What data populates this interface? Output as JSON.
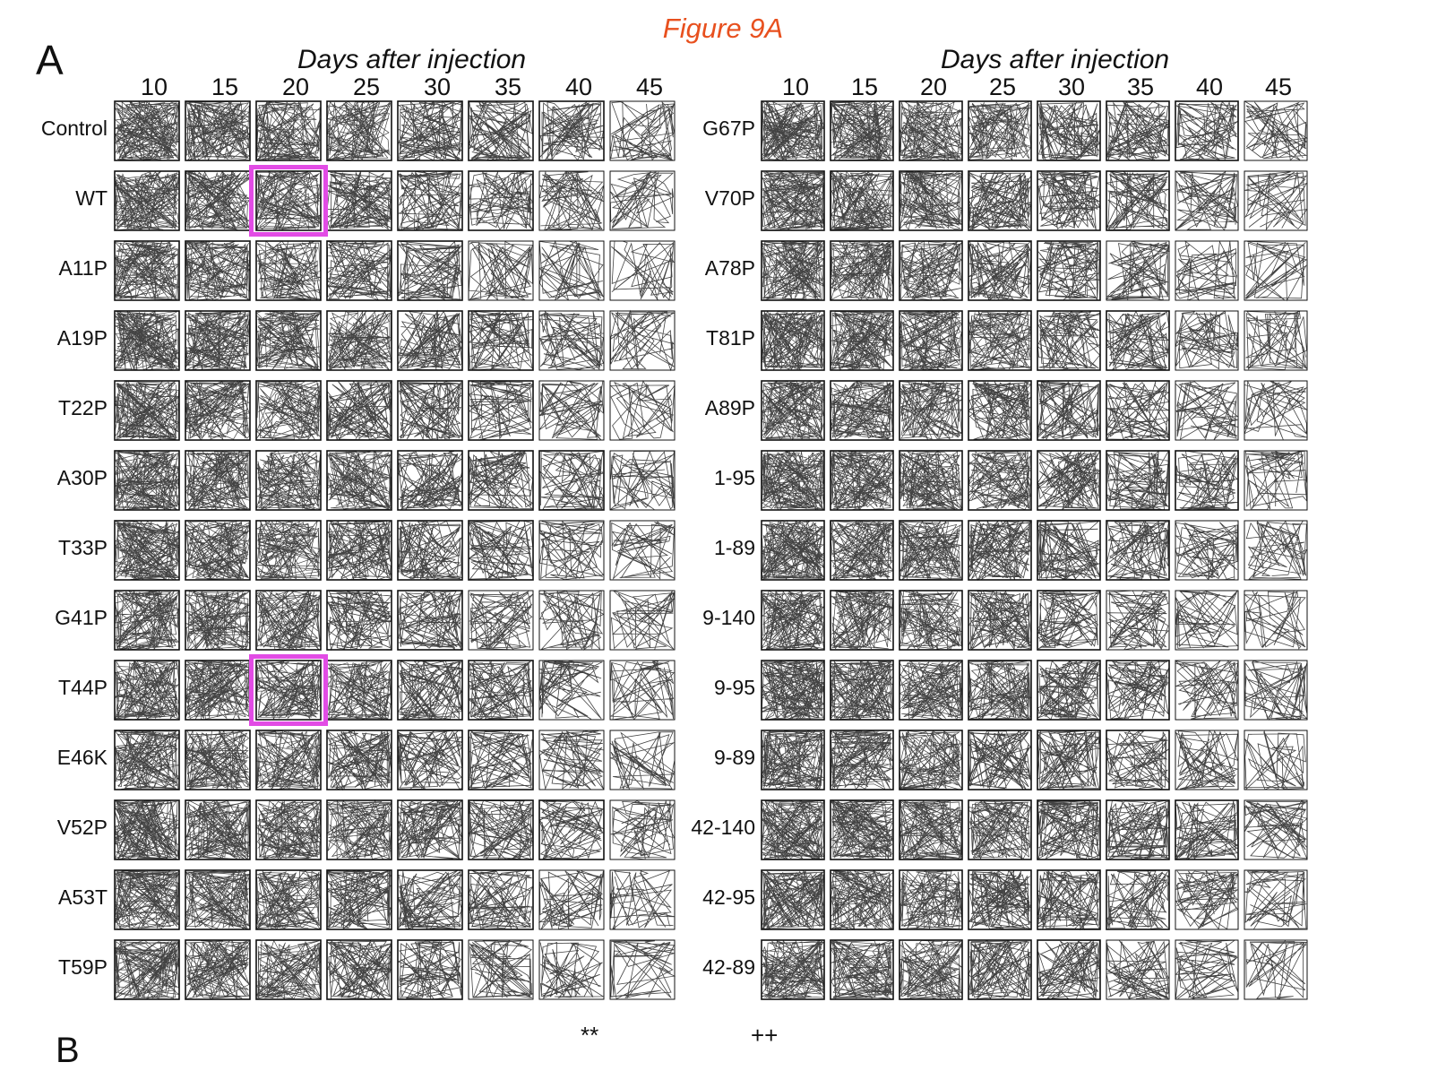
{
  "figure": {
    "title": "Figure 9A",
    "title_color": "#e8501e",
    "panel_letter": "A",
    "panel_letter_next": "B",
    "stars": [
      "**",
      "++"
    ],
    "highlight_color": "#e24ce5"
  },
  "left_panel": {
    "axis_title": "Days after injection",
    "days": [
      "10",
      "15",
      "20",
      "25",
      "30",
      "35",
      "40",
      "45"
    ],
    "rows": [
      "Control",
      "WT",
      "A11P",
      "A19P",
      "T22P",
      "A30P",
      "T33P",
      "G41P",
      "T44P",
      "E46K",
      "V52P",
      "A53T",
      "T59P"
    ]
  },
  "right_panel": {
    "axis_title": "Days after injection",
    "days": [
      "10",
      "15",
      "20",
      "25",
      "30",
      "35",
      "40",
      "45"
    ],
    "rows": [
      "G67P",
      "V70P",
      "A78P",
      "T81P",
      "A89P",
      "1-95",
      "1-89",
      "9-140",
      "9-95",
      "9-89",
      "42-140",
      "42-95",
      "42-89"
    ]
  },
  "highlights": [
    {
      "panel": "left",
      "row": "WT",
      "day": "20"
    },
    {
      "panel": "left",
      "row": "T44P",
      "day": "20"
    }
  ]
}
